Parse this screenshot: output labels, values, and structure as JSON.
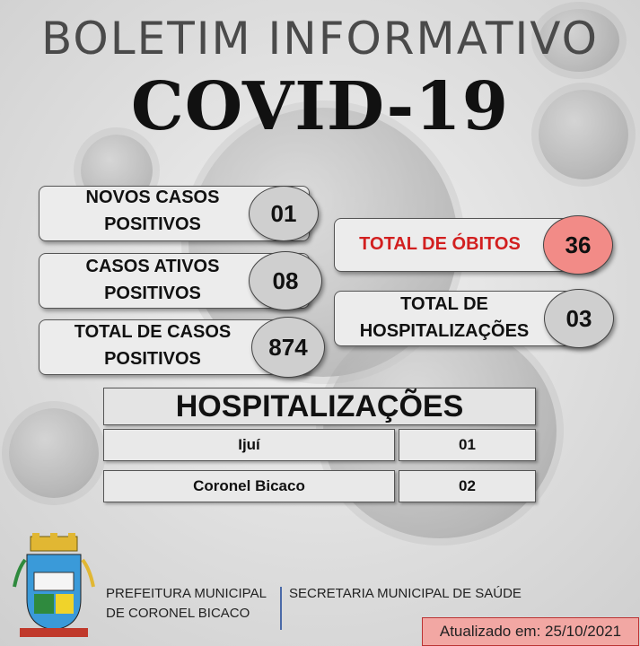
{
  "header": {
    "title_line1": "BOLETIM INFORMATIVO",
    "title_line2": "COVID-19"
  },
  "stats_left": [
    {
      "label": "NOVOS CASOS\nPOSITIVOS",
      "value": "01"
    },
    {
      "label": "CASOS ATIVOS\nPOSITIVOS",
      "value": "08"
    },
    {
      "label": "TOTAL DE CASOS\nPOSITIVOS",
      "value": "874"
    }
  ],
  "stats_right": [
    {
      "label": "TOTAL DE ÓBITOS",
      "value": "36"
    },
    {
      "label": "TOTAL DE\nHOSPITALIZAÇÕES",
      "value": "03"
    }
  ],
  "hospitalizations": {
    "title": "HOSPITALIZAÇÕES",
    "rows": [
      {
        "city": "Ijuí",
        "count": "01"
      },
      {
        "city": "Coronel Bicaco",
        "count": "02"
      }
    ]
  },
  "footer": {
    "prefeitura_line1": "PREFEITURA MUNICIPAL",
    "prefeitura_line2": "DE CORONEL BICACO",
    "secretaria": "SECRETARIA MUNICIPAL DE SAÚDE",
    "updated": "Atualizado em: 25/10/2021"
  },
  "colors": {
    "death_label": "#d21f1f",
    "death_circle": "#f28b87",
    "divider": "#4b6aa8"
  }
}
